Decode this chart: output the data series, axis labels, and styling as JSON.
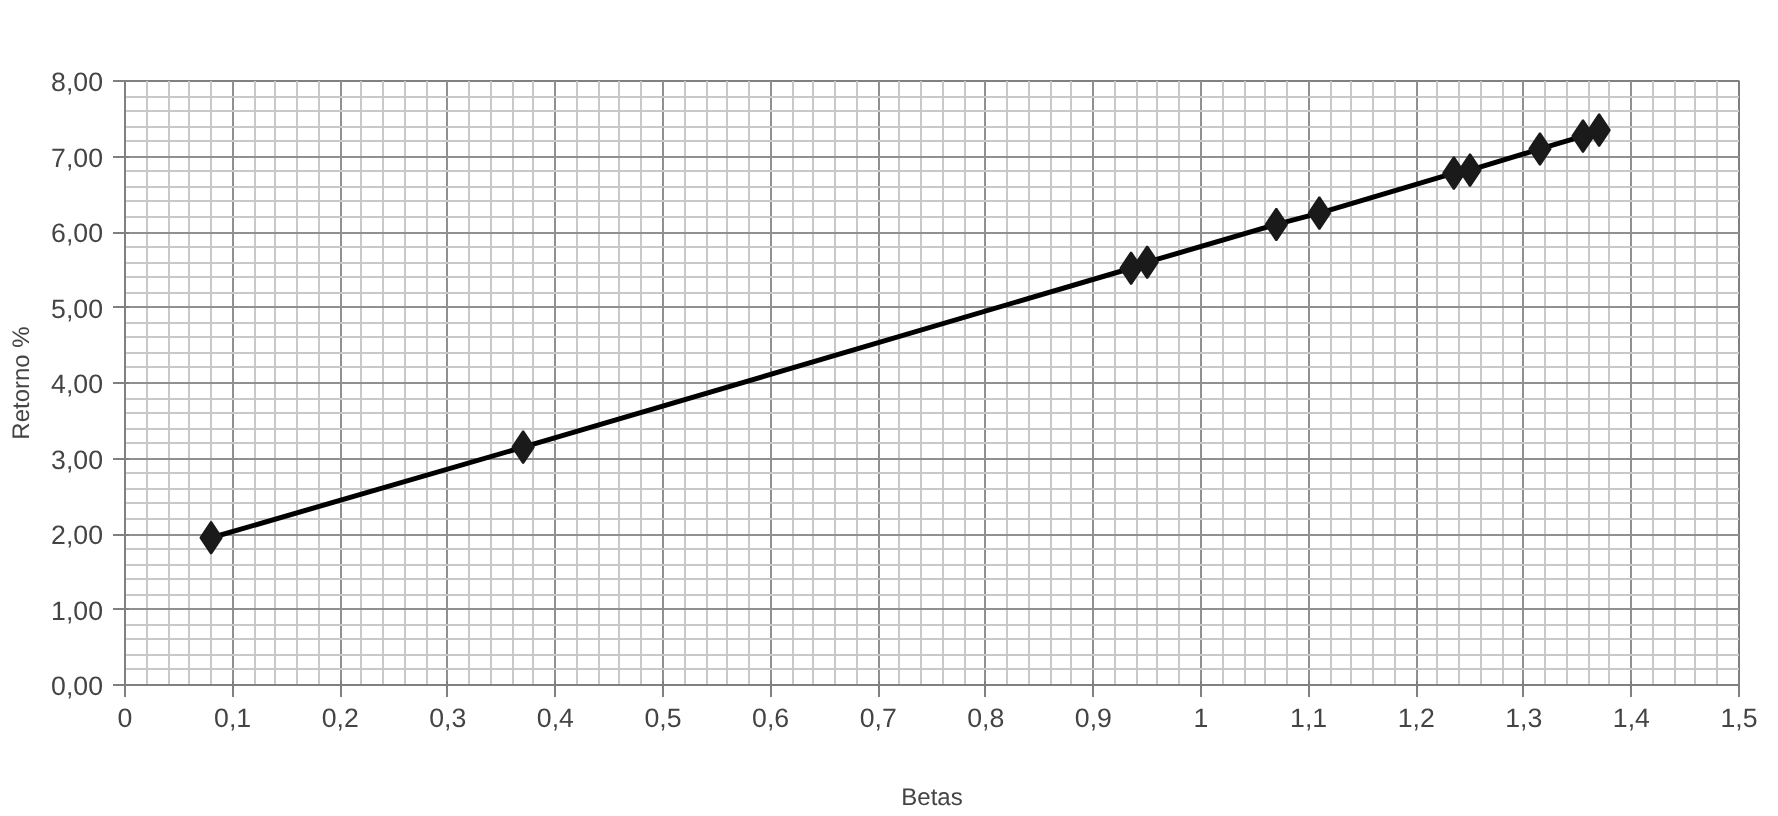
{
  "chart_data": {
    "type": "line",
    "xlabel": "Betas",
    "ylabel": "Retorno %",
    "x": [
      0.08,
      0.37,
      0.935,
      0.95,
      1.07,
      1.11,
      1.235,
      1.25,
      1.315,
      1.355,
      1.37
    ],
    "series": [
      {
        "color": "#1a1a1a",
        "values": [
          1.95,
          3.15,
          5.52,
          5.6,
          6.1,
          6.25,
          6.78,
          6.82,
          7.1,
          7.27,
          7.35
        ]
      }
    ],
    "xlim": [
      0,
      1.5
    ],
    "ylim": [
      0,
      8
    ],
    "xticks": [
      0,
      {
        "value": 0.1,
        "label": "0,1"
      },
      {
        "value": 0.2,
        "label": "0,2"
      },
      {
        "value": 0.3,
        "label": "0,3"
      },
      {
        "value": 0.4,
        "label": "0,4"
      },
      {
        "value": 0.5,
        "label": "0,5"
      },
      {
        "value": 0.6,
        "label": "0,6"
      },
      {
        "value": 0.7,
        "label": "0,7"
      },
      {
        "value": 0.8,
        "label": "0,8"
      },
      {
        "value": 0.9,
        "label": "0,9"
      },
      1,
      {
        "value": 1.1,
        "label": "1,1"
      },
      {
        "value": 1.2,
        "label": "1,2"
      },
      {
        "value": 1.3,
        "label": "1,3"
      },
      {
        "value": 1.4,
        "label": "1,4"
      },
      {
        "value": 1.5,
        "label": "1,5"
      }
    ],
    "yticks": [
      {
        "value": 0,
        "label": "0,00"
      },
      {
        "value": 1,
        "label": "1,00"
      },
      {
        "value": 2,
        "label": "2,00"
      },
      {
        "value": 3,
        "label": "3,00"
      },
      {
        "value": 4,
        "label": "4,00"
      },
      {
        "value": 5,
        "label": "5,00"
      },
      {
        "value": 6,
        "label": "6,00"
      },
      {
        "value": 7,
        "label": "7,00"
      },
      {
        "value": 8,
        "label": "8,00"
      }
    ],
    "grid": true,
    "marker": "diamond",
    "line_style": "solid"
  }
}
